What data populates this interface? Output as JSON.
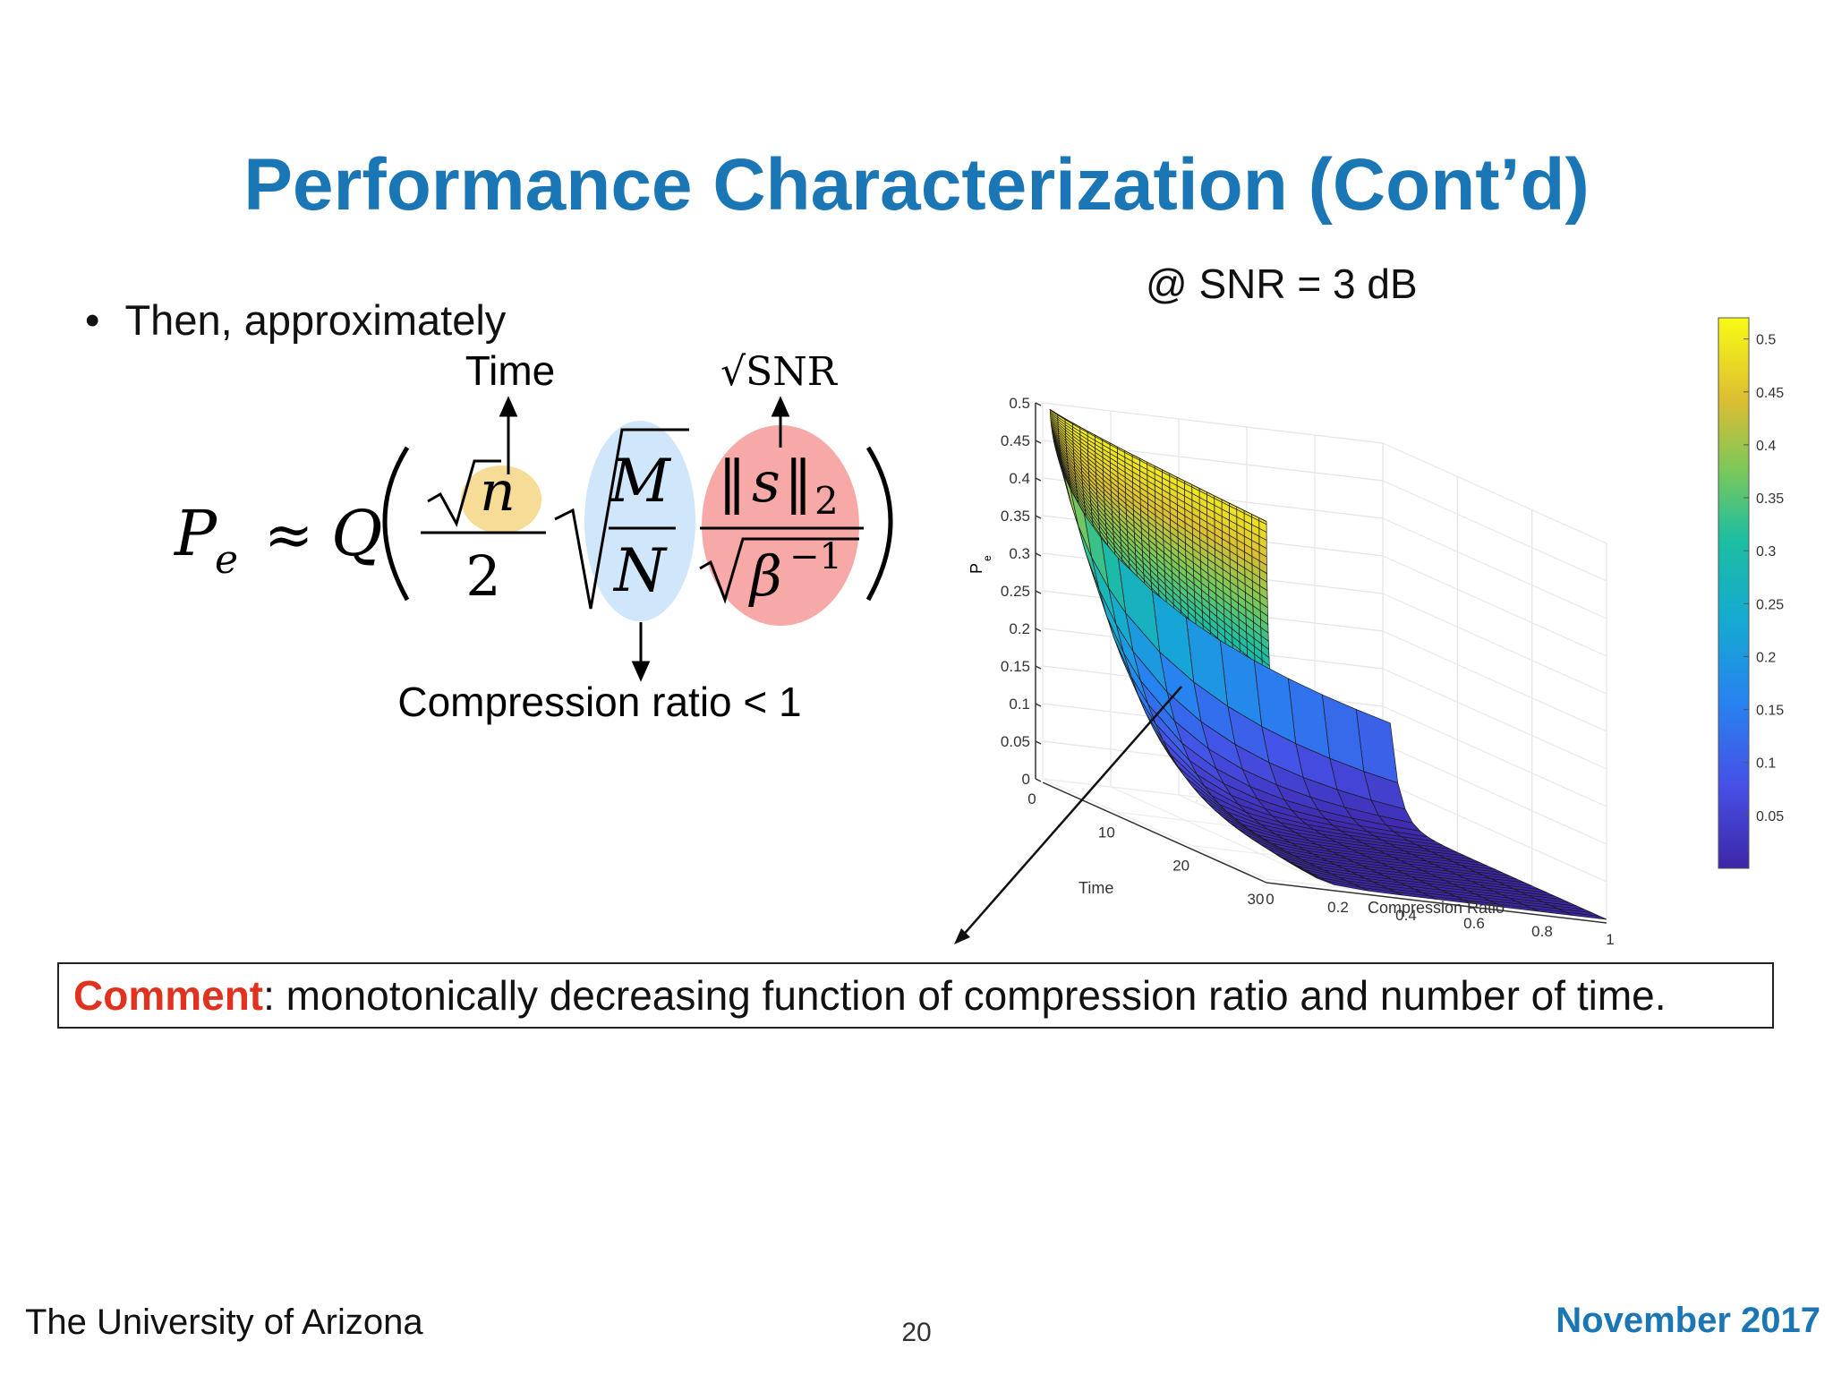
{
  "slide": {
    "title": "Performance Characterization (Cont’d)",
    "bullet": "Then, approximately",
    "annotations": {
      "time": "Time",
      "sqrt_snr": "√SNR",
      "compression": "Compression ratio < 1"
    },
    "formula": {
      "lhs": "P",
      "lhs_sub": "e",
      "approx": "≈",
      "q": "Q",
      "numer_n": "n",
      "denom_two": "2",
      "ratio_top": "M",
      "ratio_bottom": "N",
      "norm_s": "s",
      "norm_sub": "2",
      "beta": "β",
      "beta_exp": "−1"
    },
    "comment": {
      "head": "Comment",
      "text": ": monotonically decreasing function of compression ratio and number of time."
    },
    "footer": {
      "left": "The University of Arizona",
      "page": "20",
      "right": "November 2017"
    },
    "colors": {
      "title": "#1a76b4",
      "comment_head": "#e0321e",
      "highlight_n": "#f6dc96",
      "highlight_ratio": "#cfe6fb",
      "highlight_snr": "#f6a9a6"
    }
  },
  "chart_data": {
    "type": "surface",
    "title": "@ SNR = 3 dB",
    "xlabel": "Compression Ratio",
    "ylabel": "Time",
    "zlabel": "P",
    "zlabel_sub": "e",
    "x_ticks": [
      "0",
      "0.2",
      "0.4",
      "0.6",
      "0.8",
      "1"
    ],
    "y_ticks": [
      "0",
      "10",
      "20",
      "30"
    ],
    "z_ticks": [
      "0",
      "0.05",
      "0.1",
      "0.15",
      "0.2",
      "0.25",
      "0.3",
      "0.35",
      "0.4",
      "0.45",
      "0.5"
    ],
    "xlim": [
      0,
      1
    ],
    "ylim": [
      0,
      30
    ],
    "zlim": [
      0,
      0.5
    ],
    "colorbar_ticks": [
      "0.05",
      "0.1",
      "0.15",
      "0.2",
      "0.25",
      "0.3",
      "0.35",
      "0.4",
      "0.45",
      "0.5"
    ],
    "colormap": "parula",
    "surface_samples": {
      "compression_ratio": [
        0,
        0.2,
        0.4,
        0.6,
        0.8,
        1
      ],
      "time": [
        1,
        3,
        10,
        20,
        30
      ],
      "pe_at_time_1": [
        0.5,
        0.32,
        0.3,
        0.28,
        0.26,
        0.25
      ],
      "pe_at_time_30": [
        0.5,
        0.01,
        0.003,
        0.001,
        0.0005,
        0.0002
      ]
    }
  }
}
